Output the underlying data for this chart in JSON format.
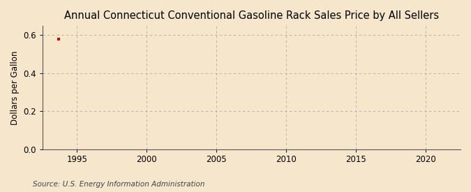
{
  "title": "Annual Connecticut Conventional Gasoline Rack Sales Price by All Sellers",
  "ylabel": "Dollars per Gallon",
  "source_text": "Source: U.S. Energy Information Administration",
  "background_color": "#f5e6cc",
  "plot_background_color": "#f5e6cc",
  "xlim": [
    1992.5,
    2022.5
  ],
  "ylim": [
    0.0,
    0.65
  ],
  "xticks": [
    1995,
    2000,
    2005,
    2010,
    2015,
    2020
  ],
  "yticks": [
    0.0,
    0.2,
    0.4,
    0.6
  ],
  "grid_color": "#aaaaaa",
  "data_x": [
    1993.7
  ],
  "data_y": [
    0.578
  ],
  "data_color": "#cc0000",
  "title_fontsize": 10.5,
  "label_fontsize": 8.5,
  "tick_fontsize": 8.5,
  "source_fontsize": 7.5
}
